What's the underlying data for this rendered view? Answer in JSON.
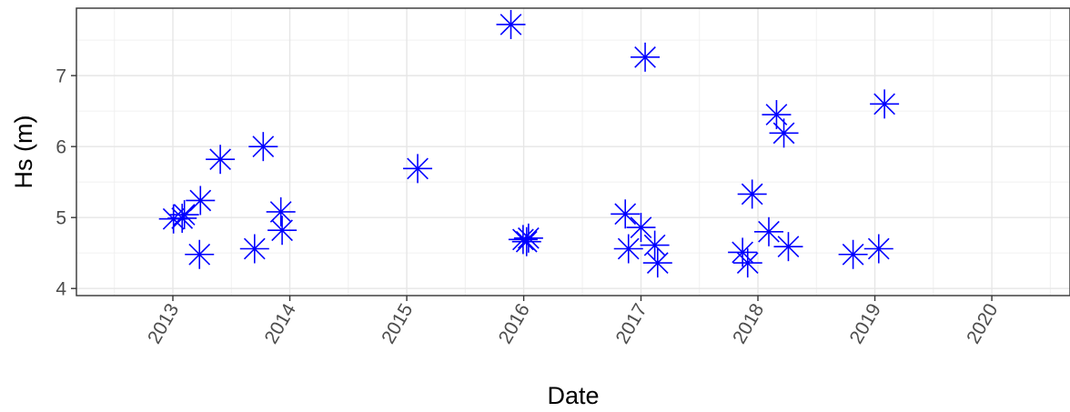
{
  "chart_data": {
    "type": "scatter",
    "title": "",
    "xlabel": "Date",
    "ylabel": "Hs (m)",
    "x_type": "date",
    "xlim": [
      "2012-03-06",
      "2020-09-01"
    ],
    "ylim": [
      3.9,
      7.95
    ],
    "x_ticks": [
      {
        "date": "2013-01-01",
        "label": "2013"
      },
      {
        "date": "2014-01-01",
        "label": "2014"
      },
      {
        "date": "2015-01-01",
        "label": "2015"
      },
      {
        "date": "2016-01-01",
        "label": "2016"
      },
      {
        "date": "2017-01-01",
        "label": "2017"
      },
      {
        "date": "2018-01-01",
        "label": "2018"
      },
      {
        "date": "2019-01-01",
        "label": "2019"
      },
      {
        "date": "2020-01-01",
        "label": "2020"
      }
    ],
    "y_ticks": [
      {
        "value": 4,
        "label": "4"
      },
      {
        "value": 5,
        "label": "5"
      },
      {
        "value": 6,
        "label": "6"
      },
      {
        "value": 7,
        "label": "7"
      }
    ],
    "grid": true,
    "marker": "asterisk",
    "marker_color": "#0000ff",
    "points": [
      {
        "x": "2013-01-03",
        "y": 4.98
      },
      {
        "x": "2013-01-30",
        "y": 4.99
      },
      {
        "x": "2013-02-06",
        "y": 5.04
      },
      {
        "x": "2013-03-25",
        "y": 4.48
      },
      {
        "x": "2013-03-28",
        "y": 5.24
      },
      {
        "x": "2013-05-29",
        "y": 5.82
      },
      {
        "x": "2013-09-13",
        "y": 4.56
      },
      {
        "x": "2013-10-10",
        "y": 6.0
      },
      {
        "x": "2013-12-04",
        "y": 5.08
      },
      {
        "x": "2013-12-08",
        "y": 4.82
      },
      {
        "x": "2015-02-04",
        "y": 5.69
      },
      {
        "x": "2015-11-22",
        "y": 7.72
      },
      {
        "x": "2015-12-30",
        "y": 4.69
      },
      {
        "x": "2016-01-10",
        "y": 4.66
      },
      {
        "x": "2016-01-16",
        "y": 4.71
      },
      {
        "x": "2016-11-13",
        "y": 5.05
      },
      {
        "x": "2016-11-23",
        "y": 4.56
      },
      {
        "x": "2017-01-01",
        "y": 4.86
      },
      {
        "x": "2017-01-14",
        "y": 7.26
      },
      {
        "x": "2017-02-13",
        "y": 4.61
      },
      {
        "x": "2017-02-22",
        "y": 4.36
      },
      {
        "x": "2017-11-14",
        "y": 4.51
      },
      {
        "x": "2017-11-30",
        "y": 4.36
      },
      {
        "x": "2017-12-14",
        "y": 5.33
      },
      {
        "x": "2018-02-04",
        "y": 4.8
      },
      {
        "x": "2018-02-28",
        "y": 6.45
      },
      {
        "x": "2018-03-23",
        "y": 6.19
      },
      {
        "x": "2018-04-06",
        "y": 4.59
      },
      {
        "x": "2018-10-25",
        "y": 4.48
      },
      {
        "x": "2019-01-13",
        "y": 4.56
      },
      {
        "x": "2019-01-31",
        "y": 6.6
      }
    ]
  }
}
